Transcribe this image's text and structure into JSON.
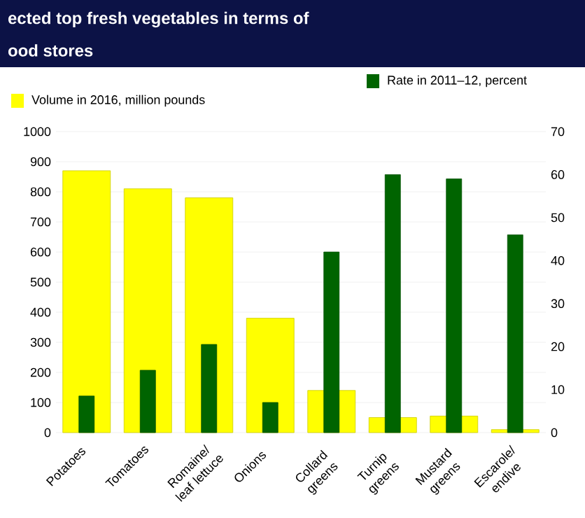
{
  "chart_data": {
    "type": "bar",
    "title": "ected top fresh vegetables in terms of",
    "subtitle": "ood stores",
    "categories": [
      "Potatoes",
      "Tomatoes",
      "Romaine/ leaf lettuce",
      "Onions",
      "Collard greens",
      "Turnip greens",
      "Mustard greens",
      "Escarole/ endive"
    ],
    "series": [
      {
        "name": "Volume in 2016, million pounds",
        "color": "#ffff00",
        "values": [
          870,
          810,
          780,
          380,
          140,
          50,
          55,
          10
        ]
      },
      {
        "name": "Rate in 2011–12, percent",
        "color": "#006400",
        "axis": "y2",
        "values": [
          8.5,
          14.5,
          20.5,
          7,
          42,
          60,
          59,
          46
        ]
      }
    ],
    "ylim": [
      0,
      1000
    ],
    "yticks": [
      0,
      100,
      200,
      300,
      400,
      500,
      600,
      700,
      800,
      900,
      1000
    ],
    "y2lim": [
      0,
      70
    ],
    "y2ticks": [
      0,
      10,
      20,
      30,
      40,
      50,
      60,
      70
    ],
    "grid": "y",
    "legend": "top"
  }
}
